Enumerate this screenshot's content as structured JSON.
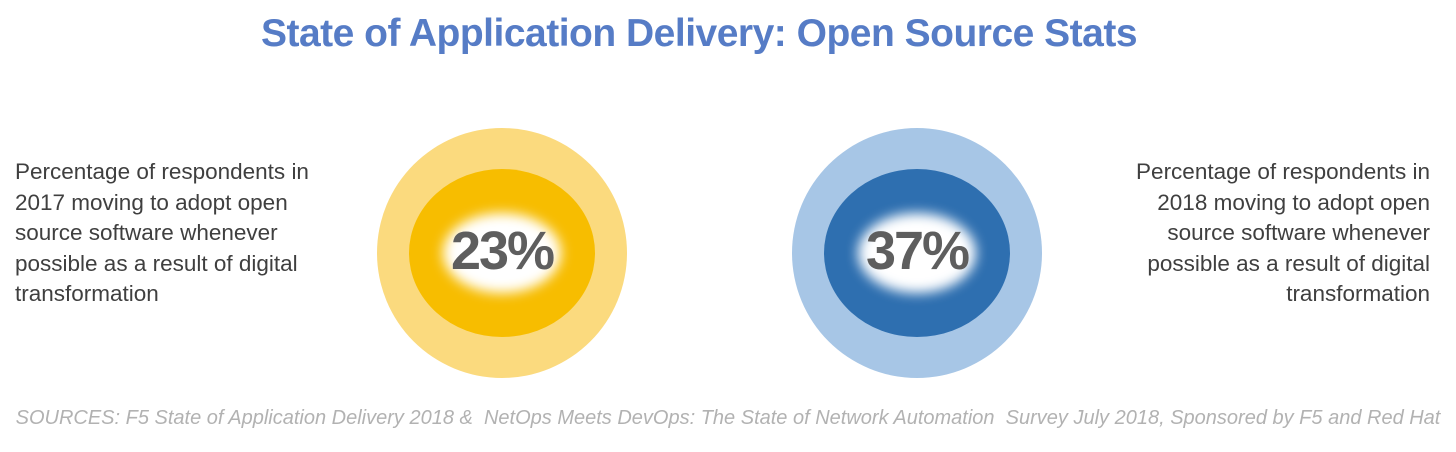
{
  "title": "State of Application Delivery: Open Source Stats",
  "stats": [
    {
      "id": "2017",
      "percent_label": "23%",
      "value": 23,
      "description": "Percentage of respondents in 2017 moving to adopt open source software whenever possible as a result of digital transformation"
    },
    {
      "id": "2018",
      "percent_label": "37%",
      "value": 37,
      "description": "Percentage of respondents in 2018 moving to adopt open source software whenever possible as a result of digital transformation"
    }
  ],
  "footer": "SOURCES: F5 State of Application Delivery 2018 &  NetOps Meets DevOps: The State of Network Automation  Survey July 2018, Sponsored by F5 and Red Hat",
  "colors": {
    "title_color": "#567CC6",
    "body_text_color": "#3F3F3F",
    "percent_text_color": "#5E5E5E",
    "footer_text_color": "#B2B2B2",
    "donut_2017_outer": "#FBDA7E",
    "donut_2017_ring": "#F7BD00",
    "donut_2018_outer": "#A7C6E6",
    "donut_2018_ring": "#2E6FB0"
  },
  "chart_data": [
    {
      "type": "pie",
      "subtype": "donut-indicator",
      "title": "Respondents in 2017 moving to adopt open source software whenever possible as a result of digital transformation",
      "center_label": "23%",
      "value_percent": 23,
      "ring_color": "#F7BD00",
      "halo_color": "#FBDA7E",
      "legend_position": "none",
      "grid": false
    },
    {
      "type": "pie",
      "subtype": "donut-indicator",
      "title": "Respondents in 2018 moving to adopt open source software whenever possible as a result of digital transformation",
      "center_label": "37%",
      "value_percent": 37,
      "ring_color": "#2E6FB0",
      "halo_color": "#A7C6E6",
      "legend_position": "none",
      "grid": false
    }
  ]
}
